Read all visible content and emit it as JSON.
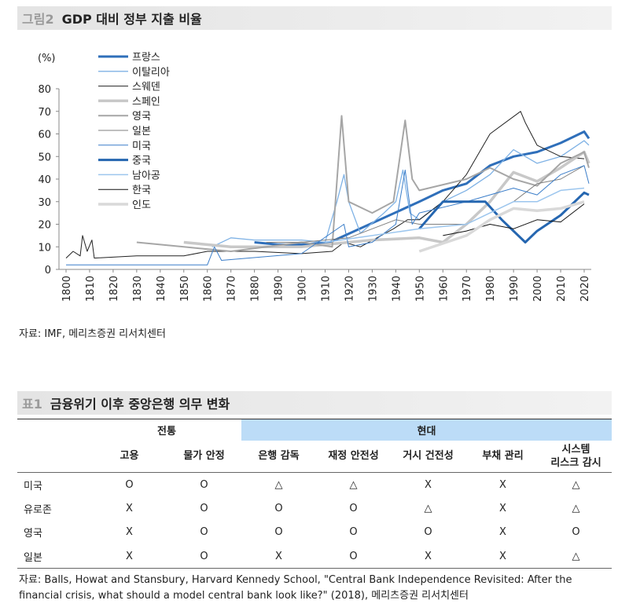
{
  "figure_header": {
    "label": "그림2",
    "title": "GDP 대비 정부 지출 비율"
  },
  "chart_data": {
    "type": "line",
    "y_label": "(%)",
    "legend": "upper left",
    "xlim": [
      1797,
      2023
    ],
    "xticks": [
      1800,
      1810,
      1820,
      1830,
      1840,
      1850,
      1860,
      1870,
      1880,
      1890,
      1900,
      1910,
      1920,
      1930,
      1940,
      1950,
      1960,
      1970,
      1980,
      1990,
      2000,
      2010,
      2020
    ],
    "ylim": [
      0,
      80
    ],
    "yticks": [
      0,
      10,
      20,
      30,
      40,
      50,
      60,
      70,
      80
    ],
    "series": [
      {
        "name": "프랑스",
        "color": "#2f6fba",
        "width": 3,
        "x": [
          1880,
          1890,
          1900,
          1912,
          1950,
          1960,
          1970,
          1980,
          1990,
          2000,
          2010,
          2020,
          2022
        ],
        "values": [
          12,
          11,
          11,
          12,
          30,
          35,
          38,
          46,
          50,
          52,
          56,
          61,
          58
        ]
      },
      {
        "name": "이탈리아",
        "color": "#7fb2e5",
        "width": 1.3,
        "x": [
          1862,
          1870,
          1880,
          1900,
          1910,
          1915,
          1918,
          1920,
          1925,
          1935,
          1940,
          1943,
          1946,
          1950,
          1960,
          1970,
          1980,
          1990,
          2000,
          2010,
          2020,
          2022
        ],
        "values": [
          10,
          14,
          13,
          13,
          12,
          30,
          42,
          30,
          16,
          25,
          30,
          44,
          25,
          22,
          30,
          35,
          42,
          53,
          47,
          50,
          57,
          55
        ]
      },
      {
        "name": "스웨덴",
        "color": "#222222",
        "width": 1,
        "x": [
          1800,
          1803,
          1806,
          1807,
          1809,
          1811,
          1812,
          1830,
          1850,
          1860,
          1880,
          1900,
          1913,
          1918,
          1925,
          1939,
          1945,
          1950,
          1960,
          1970,
          1980,
          1993,
          1995,
          2000,
          2010,
          2020
        ],
        "values": [
          5,
          8,
          6,
          15,
          8,
          13,
          5,
          6,
          6,
          8,
          8,
          7,
          8,
          12,
          10,
          18,
          22,
          22,
          30,
          42,
          60,
          70,
          65,
          55,
          50,
          49
        ]
      },
      {
        "name": "스페인",
        "color": "#c8c8c8",
        "width": 3.5,
        "x": [
          1850,
          1870,
          1900,
          1930,
          1950,
          1960,
          1970,
          1980,
          1990,
          2000,
          2010,
          2020,
          2022
        ],
        "values": [
          12,
          10,
          10,
          13,
          14,
          12,
          20,
          30,
          43,
          39,
          45,
          52,
          47
        ]
      },
      {
        "name": "영국",
        "color": "#a6a6a6",
        "width": 2,
        "x": [
          1830,
          1850,
          1870,
          1900,
          1913,
          1917,
          1920,
          1930,
          1939,
          1944,
          1947,
          1950,
          1970,
          1980,
          1990,
          2000,
          2010,
          2020,
          2022
        ],
        "values": [
          12,
          10,
          8,
          12,
          10,
          68,
          30,
          25,
          30,
          66,
          40,
          35,
          40,
          45,
          40,
          37,
          47,
          52,
          45
        ]
      },
      {
        "name": "일본",
        "color": "#7f7f7f",
        "width": 1,
        "x": [
          1885,
          1900,
          1920,
          1940,
          1950,
          1970,
          1990,
          2000,
          2010,
          2020
        ],
        "values": [
          12,
          12,
          14,
          22,
          20,
          20,
          30,
          38,
          40,
          46
        ]
      },
      {
        "name": "미국",
        "color": "#3a7dc9",
        "width": 1,
        "x": [
          1800,
          1860,
          1863,
          1866,
          1900,
          1918,
          1920,
          1930,
          1940,
          1944,
          1947,
          1950,
          1970,
          1990,
          2000,
          2010,
          2020,
          2022
        ],
        "values": [
          2,
          2,
          10,
          4,
          7,
          20,
          10,
          12,
          20,
          44,
          20,
          25,
          30,
          36,
          33,
          42,
          46,
          38
        ]
      },
      {
        "name": "중국",
        "color": "#2566b0",
        "width": 3,
        "x": [
          1950,
          1960,
          1978,
          1985,
          1995,
          2000,
          2010,
          2020,
          2022
        ],
        "values": [
          18,
          30,
          30,
          22,
          12,
          17,
          24,
          34,
          33
        ]
      },
      {
        "name": "남아공",
        "color": "#9cc6ee",
        "width": 1.5,
        "x": [
          1910,
          1930,
          1950,
          1970,
          1980,
          1990,
          2000,
          2010,
          2020
        ],
        "values": [
          12,
          15,
          18,
          20,
          25,
          30,
          30,
          35,
          36
        ]
      },
      {
        "name": "한국",
        "color": "#111111",
        "width": 1,
        "x": [
          1960,
          1970,
          1980,
          1990,
          2000,
          2010,
          2020
        ],
        "values": [
          15,
          17,
          20,
          18,
          22,
          21,
          29
        ]
      },
      {
        "name": "인도",
        "color": "#d9d9d9",
        "width": 3.5,
        "x": [
          1950,
          1970,
          1980,
          1990,
          2000,
          2010,
          2020
        ],
        "values": [
          8,
          15,
          22,
          27,
          26,
          27,
          30
        ]
      }
    ]
  },
  "chart_source": "자료: IMF, 메리츠증권 리서치센터",
  "table_header": {
    "label": "표1",
    "title": "금융위기 이후 중앙은행 의무 변화"
  },
  "table": {
    "groups": [
      "전통",
      "현대"
    ],
    "columns": [
      "고용",
      "물가 안정",
      "은행 감독",
      "재정 안전성",
      "거시 건전성",
      "부채 관리",
      "시스템\n리스크 감시"
    ],
    "rows": [
      [
        "미국",
        "O",
        "O",
        "△",
        "△",
        "X",
        "X",
        "△"
      ],
      [
        "유로존",
        "X",
        "O",
        "O",
        "O",
        "△",
        "X",
        "△"
      ],
      [
        "영국",
        "X",
        "O",
        "O",
        "O",
        "O",
        "X",
        "O"
      ],
      [
        "일본",
        "X",
        "O",
        "X",
        "O",
        "X",
        "X",
        "△"
      ]
    ]
  },
  "table_source": "자료: Balls, Howat and Stansbury, Harvard Kennedy School, \"Central Bank Independence Revisited: After the financial crisis, what should a model central bank look like?\" (2018), 메리츠증권 리서치센터"
}
